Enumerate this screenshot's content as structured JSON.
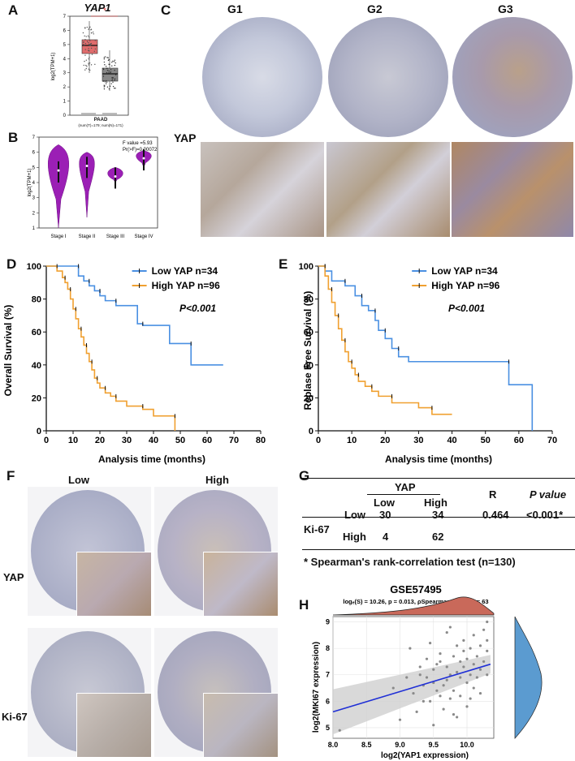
{
  "labels": {
    "A": "A",
    "B": "B",
    "C": "C",
    "D": "D",
    "E": "E",
    "F": "F",
    "G": "G",
    "H": "H"
  },
  "panel_a": {
    "title": "YAP1",
    "ylabel": "log2(TPM+1)",
    "xlabel": "PAAD",
    "note": "(num(T)=179; num(N)=171)",
    "star": "*",
    "ticks": [
      "0",
      "1",
      "2",
      "3",
      "4",
      "5",
      "6",
      "7"
    ]
  },
  "panel_b": {
    "ylabel": "log2(TPM+1)",
    "stat1": "F value =5.93",
    "stat2": "Pr(>F)=0.00072",
    "categories": [
      "Stage I",
      "Stage II",
      "Stage III",
      "Stage IV"
    ],
    "ticks": [
      "1",
      "2",
      "3",
      "4",
      "5",
      "6",
      "7"
    ]
  },
  "panel_c": {
    "cols": [
      "G1",
      "G2",
      "G3"
    ],
    "row_label": "YAP"
  },
  "panel_f": {
    "cols": [
      "Low",
      "High"
    ],
    "rows": [
      "YAP",
      "Ki-67"
    ]
  },
  "panel_g": {
    "head_yap": "YAP",
    "head_low": "Low",
    "head_high": "High",
    "head_r": "R",
    "head_p": "P value",
    "row_label": "Ki-67",
    "row1": {
      "label": "Low",
      "low": "30",
      "high": "34",
      "r": "0.464",
      "p": "<0.001*"
    },
    "row2": {
      "label": "High",
      "low": "4",
      "high": "62"
    },
    "footnote": "* Spearman's rank-correlation test (n=130)"
  },
  "chart_data": [
    {
      "type": "box",
      "panel": "A",
      "title": "YAP1",
      "ylabel": "log2(TPM+1)",
      "categories": [
        "Tumor",
        "Normal"
      ],
      "medians": [
        4.9,
        2.7
      ],
      "ylim": [
        0,
        7
      ],
      "colors": [
        "#e06c6c",
        "#777777"
      ]
    },
    {
      "type": "violin",
      "panel": "B",
      "ylabel": "log2(TPM+1)",
      "categories": [
        "Stage I",
        "Stage II",
        "Stage III",
        "Stage IV"
      ],
      "medians": [
        4.8,
        5.1,
        4.4,
        5.6
      ],
      "ylim": [
        1,
        7
      ],
      "color": "#9b1fb5"
    },
    {
      "type": "line",
      "panel": "D",
      "xlabel": "Analysis time (months)",
      "ylabel": "Overall Survival (%)",
      "xlim": [
        0,
        80
      ],
      "ylim": [
        0,
        100
      ],
      "annotation": "P<0.001",
      "xticks": [
        "0",
        "10",
        "20",
        "30",
        "40",
        "50",
        "60",
        "70",
        "80"
      ],
      "yticks": [
        "0",
        "20",
        "40",
        "60",
        "80",
        "100"
      ],
      "series": [
        {
          "name": "Low YAP n=34",
          "color": "#4a90e2",
          "x": [
            0,
            12,
            12,
            14,
            14,
            16,
            16,
            18,
            18,
            20,
            20,
            22,
            22,
            26,
            26,
            34,
            34,
            36,
            36,
            46,
            46,
            54,
            54,
            66
          ],
          "y": [
            100,
            100,
            94,
            94,
            91,
            91,
            88,
            88,
            85,
            85,
            82,
            82,
            79,
            79,
            76,
            76,
            65,
            65,
            64,
            64,
            53,
            53,
            40,
            40
          ]
        },
        {
          "name": "High YAP n=96",
          "color": "#f0a030",
          "x": [
            0,
            4,
            4,
            6,
            6,
            7,
            7,
            8,
            8,
            9,
            9,
            10,
            10,
            11,
            11,
            12,
            12,
            13,
            13,
            14,
            14,
            15,
            15,
            16,
            16,
            17,
            17,
            18,
            18,
            19,
            19,
            20,
            20,
            22,
            22,
            24,
            24,
            26,
            26,
            30,
            30,
            36,
            36,
            40,
            40,
            48,
            48
          ],
          "y": [
            100,
            100,
            97,
            97,
            93,
            93,
            90,
            90,
            86,
            86,
            80,
            80,
            74,
            74,
            68,
            68,
            62,
            62,
            57,
            57,
            52,
            52,
            47,
            47,
            42,
            42,
            37,
            37,
            32,
            32,
            29,
            29,
            26,
            26,
            23,
            23,
            21,
            21,
            18,
            18,
            15,
            15,
            13,
            13,
            9,
            9,
            0
          ]
        }
      ]
    },
    {
      "type": "line",
      "panel": "E",
      "xlabel": "Analysis time (months)",
      "ylabel": "Replase Free Survival (%)",
      "xlim": [
        0,
        70
      ],
      "ylim": [
        0,
        100
      ],
      "annotation": "P<0.001",
      "xticks": [
        "0",
        "10",
        "20",
        "30",
        "40",
        "50",
        "60",
        "70"
      ],
      "yticks": [
        "0",
        "20",
        "40",
        "60",
        "80",
        "100"
      ],
      "series": [
        {
          "name": "Low YAP n=34",
          "color": "#4a90e2",
          "x": [
            0,
            2,
            2,
            4,
            4,
            8,
            8,
            11,
            11,
            13,
            13,
            15,
            15,
            17,
            17,
            18,
            18,
            20,
            20,
            22,
            22,
            24,
            24,
            27,
            27,
            57,
            57,
            64,
            64
          ],
          "y": [
            100,
            100,
            97,
            97,
            91,
            91,
            88,
            88,
            82,
            82,
            76,
            76,
            73,
            73,
            67,
            67,
            61,
            61,
            56,
            56,
            50,
            50,
            45,
            45,
            42,
            42,
            28,
            28,
            0
          ]
        },
        {
          "name": "High YAP n=96",
          "color": "#f0a030",
          "x": [
            0,
            2,
            2,
            3,
            3,
            4,
            4,
            5,
            5,
            6,
            6,
            7,
            7,
            8,
            8,
            9,
            9,
            10,
            10,
            11,
            11,
            12,
            12,
            14,
            14,
            16,
            16,
            18,
            18,
            22,
            22,
            30,
            30,
            34,
            34,
            40
          ],
          "y": [
            100,
            100,
            94,
            94,
            86,
            86,
            78,
            78,
            70,
            70,
            62,
            62,
            55,
            55,
            48,
            48,
            42,
            42,
            38,
            38,
            34,
            34,
            30,
            30,
            27,
            27,
            24,
            24,
            21,
            21,
            17,
            17,
            14,
            14,
            10,
            10
          ]
        }
      ]
    },
    {
      "type": "scatter",
      "panel": "H",
      "title": "GSE57495",
      "subtitle": "logₑ(S) = 10.26, p = 0.013, ρSpearman = 0.31, n= 63",
      "xlabel": "log2(YAP1 expression)",
      "ylabel": "log2(MKI67 expression)",
      "xlim": [
        8.0,
        10.4
      ],
      "ylim": [
        4.6,
        9.2
      ],
      "xticks": [
        "8.0",
        "8.5",
        "9.0",
        "9.5",
        "10.0"
      ],
      "yticks": [
        "5",
        "6",
        "7",
        "8",
        "9"
      ],
      "fit": {
        "x": [
          8.0,
          10.35
        ],
        "y": [
          5.6,
          7.4
        ]
      },
      "x": [
        8.1,
        8.9,
        9.0,
        9.1,
        9.15,
        9.2,
        9.25,
        9.3,
        9.3,
        9.35,
        9.4,
        9.4,
        9.45,
        9.5,
        9.5,
        9.5,
        9.55,
        9.6,
        9.6,
        9.6,
        9.65,
        9.7,
        9.7,
        9.7,
        9.75,
        9.75,
        9.8,
        9.8,
        9.8,
        9.85,
        9.85,
        9.9,
        9.9,
        9.9,
        9.95,
        9.95,
        10.0,
        10.0,
        10.0,
        10.05,
        10.05,
        10.1,
        10.1,
        10.1,
        10.15,
        10.15,
        10.2,
        10.2,
        10.2,
        10.25,
        10.25,
        10.3,
        10.3,
        10.3,
        9.55,
        9.65,
        9.75,
        9.85,
        9.95,
        10.05,
        9.45,
        9.35,
        10.3
      ],
      "y": [
        4.9,
        6.5,
        5.3,
        6.9,
        8.0,
        6.3,
        5.6,
        7.3,
        7.0,
        6.6,
        6.9,
        7.6,
        6.0,
        7.2,
        5.1,
        6.7,
        6.4,
        7.5,
        6.2,
        7.8,
        5.7,
        6.8,
        7.3,
        8.6,
        6.1,
        7.0,
        7.7,
        6.4,
        5.5,
        7.1,
        8.1,
        6.9,
        7.5,
        6.2,
        7.3,
        8.3,
        6.7,
        7.6,
        5.8,
        7.0,
        8.0,
        6.5,
        7.4,
        8.5,
        6.9,
        7.7,
        7.2,
        8.1,
        6.3,
        7.5,
        8.7,
        7.0,
        7.9,
        9.0,
        7.4,
        6.6,
        8.8,
        5.4,
        7.9,
        6.1,
        8.2,
        6.0,
        8.3
      ]
    }
  ]
}
